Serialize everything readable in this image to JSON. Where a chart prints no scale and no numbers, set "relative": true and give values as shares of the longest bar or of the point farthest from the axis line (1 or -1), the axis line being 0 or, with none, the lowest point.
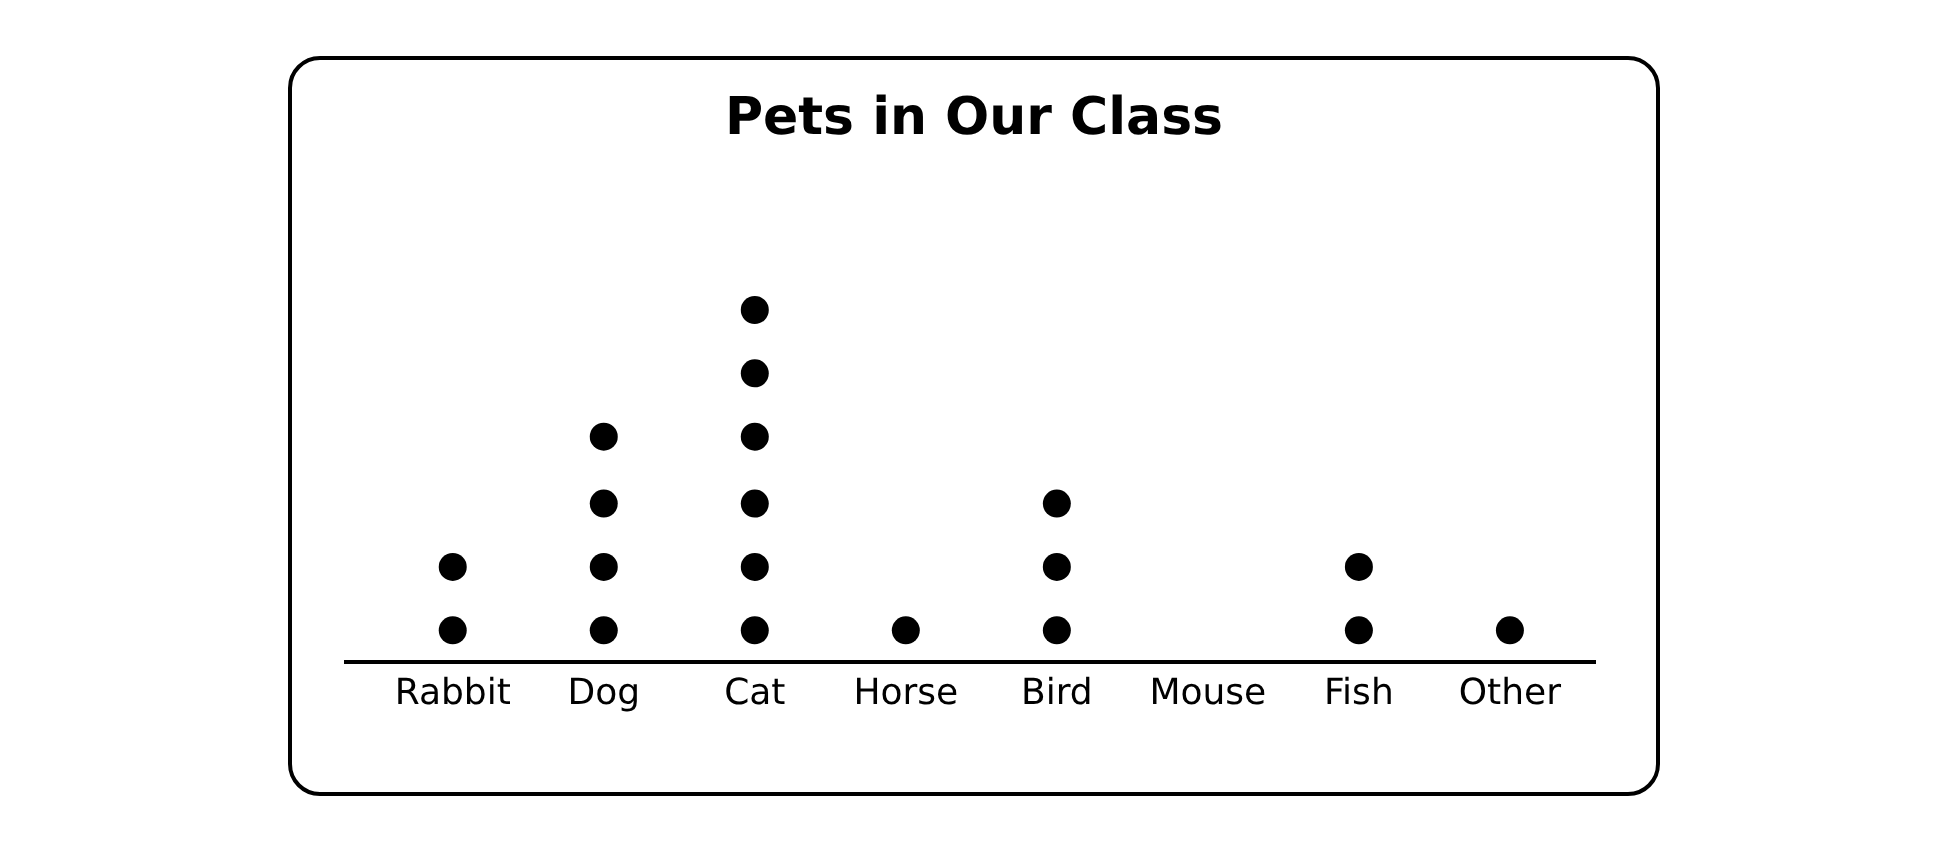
{
  "chart_data": {
    "type": "scatter",
    "title": "Pets in Our Class",
    "categories": [
      "Rabbit",
      "Dog",
      "Cat",
      "Horse",
      "Bird",
      "Mouse",
      "Fish",
      "Other"
    ],
    "series": [
      {
        "color": "#000000",
        "x": [
          "Rabbit",
          "Rabbit",
          "Dog",
          "Dog",
          "Dog",
          "Dog",
          "Cat",
          "Cat",
          "Cat",
          "Cat",
          "Cat",
          "Cat",
          "Horse",
          "Bird",
          "Bird",
          "Bird",
          "Fish",
          "Fish",
          "Other"
        ],
        "values": [
          0.09,
          0.27,
          0.09,
          0.27,
          0.45,
          0.64,
          0.09,
          0.27,
          0.45,
          0.64,
          0.82,
          1,
          0.09,
          0.09,
          0.27,
          0.45,
          0.09,
          0.27,
          0.09
        ]
      }
    ],
    "relative": true,
    "marker": "circle",
    "tick_labels": "x"
  }
}
